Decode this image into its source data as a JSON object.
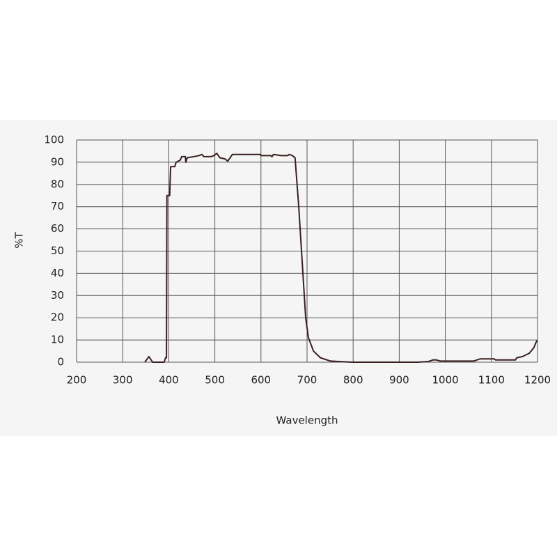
{
  "chart_data": {
    "type": "line",
    "xlabel": "Wavelength",
    "ylabel": "%T",
    "xlim": [
      200,
      1200
    ],
    "ylim": [
      0,
      100
    ],
    "xticks": [
      200,
      300,
      400,
      500,
      600,
      700,
      800,
      900,
      1000,
      1100,
      1200
    ],
    "yticks": [
      0,
      10,
      20,
      30,
      40,
      50,
      60,
      70,
      80,
      90,
      100
    ],
    "grid": true,
    "series": [
      {
        "color": "#3a1f1f",
        "x": [
          348,
          357,
          365,
          390,
          393,
          395,
          396,
          402,
          404,
          413,
          416,
          425,
          428,
          436,
          437,
          440,
          454,
          466,
          472,
          476,
          492,
          498,
          504,
          511,
          522,
          528,
          538,
          599,
          600,
          621,
          624,
          627,
          644,
          658,
          661,
          668,
          674,
          682,
          691,
          697,
          703,
          714,
          729,
          751,
          797,
          940,
          963,
          973,
          981,
          989,
          1061,
          1076,
          1106,
          1109,
          1152,
          1155,
          1167,
          1182,
          1192,
          1197,
          1200
        ],
        "values": [
          0,
          2.5,
          0,
          0,
          2,
          2,
          75,
          75,
          88,
          88,
          90,
          91,
          92.5,
          92.5,
          90,
          92,
          92.5,
          93,
          93.5,
          92.5,
          92.5,
          93,
          94,
          92,
          91.5,
          90.5,
          93.5,
          93.5,
          93,
          93,
          92.5,
          93.5,
          93,
          93,
          93.5,
          93,
          92,
          70,
          40,
          20,
          11,
          5,
          2,
          0.5,
          0,
          0,
          0.3,
          1,
          1,
          0.5,
          0.5,
          1.5,
          1.5,
          1,
          1,
          2,
          2.5,
          4,
          6.5,
          9,
          10
        ]
      }
    ]
  }
}
